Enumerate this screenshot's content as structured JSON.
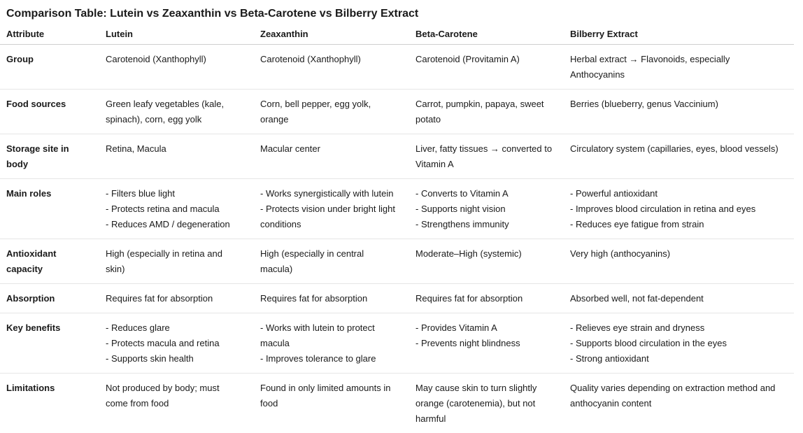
{
  "title": "Comparison Table: Lutein vs Zeaxanthin vs Beta-Carotene vs Bilberry Extract",
  "table": {
    "header": [
      "Attribute",
      "Lutein",
      "Zeaxanthin",
      "Beta-Carotene",
      "Bilberry Extract"
    ],
    "rows": [
      [
        [
          "Group"
        ],
        [
          "Carotenoid (Xanthophyll)"
        ],
        [
          "Carotenoid (Xanthophyll)"
        ],
        [
          "Carotenoid (Provitamin A)"
        ],
        [
          "Herbal extract → Flavonoids, especially Anthocyanins"
        ]
      ],
      [
        [
          "Food sources"
        ],
        [
          "Green leafy vegetables (kale, spinach), corn, egg yolk"
        ],
        [
          "Corn, bell pepper, egg yolk, orange"
        ],
        [
          "Carrot, pumpkin, papaya, sweet potato"
        ],
        [
          "Berries (blueberry, genus Vaccinium)"
        ]
      ],
      [
        [
          "Storage site in body"
        ],
        [
          "Retina, Macula"
        ],
        [
          "Macular center"
        ],
        [
          "Liver, fatty tissues → converted to Vitamin A"
        ],
        [
          "Circulatory system (capillaries, eyes, blood vessels)"
        ]
      ],
      [
        [
          "Main roles"
        ],
        [
          "- Filters blue light",
          "- Protects retina and macula",
          "- Reduces AMD / degeneration"
        ],
        [
          "- Works synergistically with lutein",
          "- Protects vision under bright light conditions"
        ],
        [
          "- Converts to Vitamin A",
          "- Supports night vision",
          "- Strengthens immunity"
        ],
        [
          "- Powerful antioxidant",
          "- Improves blood circulation in retina and eyes",
          "- Reduces eye fatigue from strain"
        ]
      ],
      [
        [
          "Antioxidant capacity"
        ],
        [
          "High (especially in retina and skin)"
        ],
        [
          "High (especially in central macula)"
        ],
        [
          "Moderate–High (systemic)"
        ],
        [
          "Very high (anthocyanins)"
        ]
      ],
      [
        [
          "Absorption"
        ],
        [
          "Requires fat for absorption"
        ],
        [
          "Requires fat for absorption"
        ],
        [
          "Requires fat for absorption"
        ],
        [
          "Absorbed well, not fat-dependent"
        ]
      ],
      [
        [
          "Key benefits"
        ],
        [
          "- Reduces glare",
          "- Protects macula and retina",
          "- Supports skin health"
        ],
        [
          "- Works with lutein to protect macula",
          "- Improves tolerance to glare"
        ],
        [
          "- Provides Vitamin A",
          "- Prevents night blindness"
        ],
        [
          "- Relieves eye strain and dryness",
          "- Supports blood circulation in the eyes",
          "- Strong antioxidant"
        ]
      ],
      [
        [
          "Limitations"
        ],
        [
          "Not produced by body; must come from food"
        ],
        [
          "Found in only limited amounts in food"
        ],
        [
          "May cause skin to turn slightly orange (carotenemia), but not harmful"
        ],
        [
          "Quality varies depending on extraction method and anthocyanin content"
        ]
      ]
    ]
  }
}
